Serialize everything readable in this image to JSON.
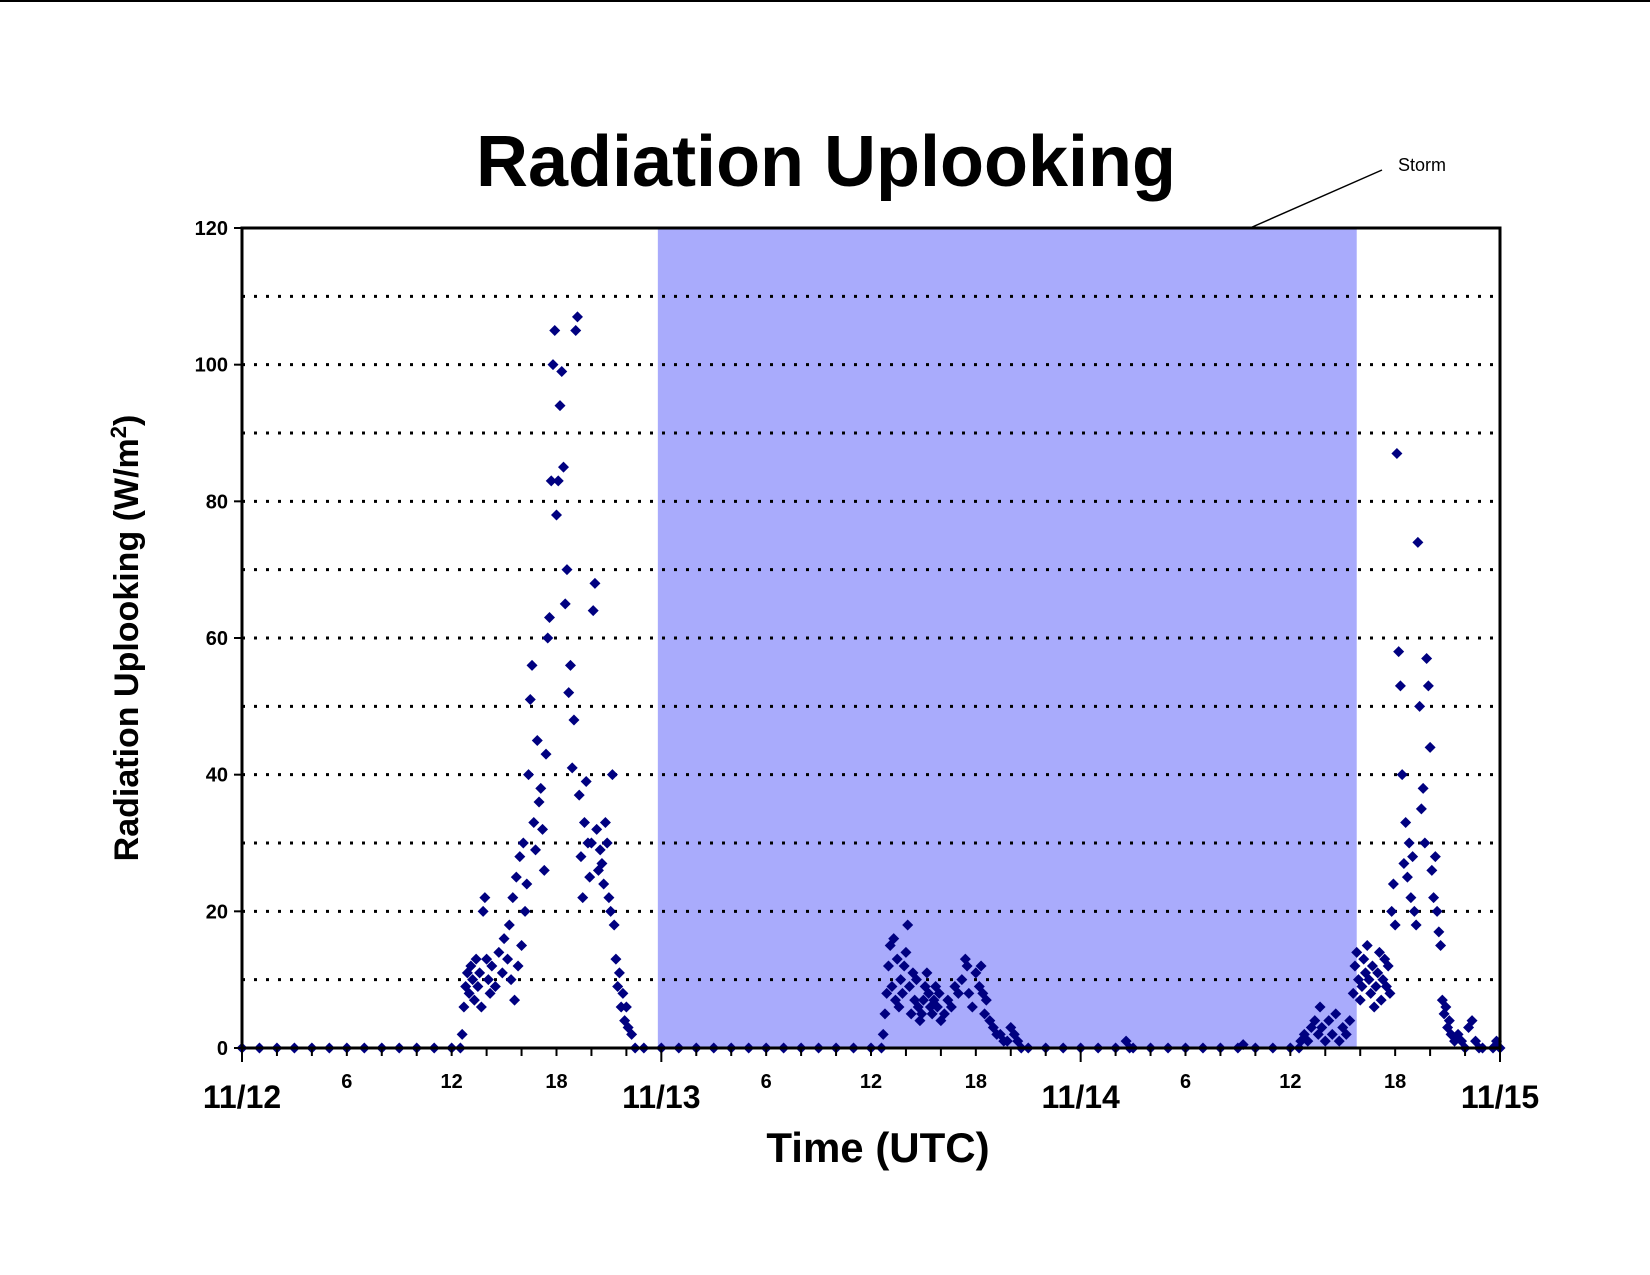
{
  "chart_data": {
    "type": "scatter",
    "title": "Radiation Uplooking",
    "xlabel": "Time (UTC)",
    "ylabel": "Radiation Uplooking (W/m",
    "ylabel_superscript": "2",
    "ylabel_close": ")",
    "ylim": [
      0,
      120
    ],
    "yticks": [
      0,
      20,
      40,
      60,
      80,
      100,
      120
    ],
    "grid_lines": [
      10,
      20,
      30,
      40,
      50,
      60,
      70,
      80,
      90,
      100,
      110
    ],
    "grid": "dotted horizontal",
    "x_unit": "hours from 11/12 00 UTC",
    "xlim": [
      0,
      72
    ],
    "date_ticks": [
      {
        "x": 0,
        "label": "11/12"
      },
      {
        "x": 24,
        "label": "11/13"
      },
      {
        "x": 48,
        "label": "11/14"
      },
      {
        "x": 72,
        "label": "11/15"
      }
    ],
    "hour_ticks": [
      {
        "x": 6,
        "label": "6"
      },
      {
        "x": 12,
        "label": "12"
      },
      {
        "x": 18,
        "label": "18"
      },
      {
        "x": 30,
        "label": "6"
      },
      {
        "x": 36,
        "label": "12"
      },
      {
        "x": 42,
        "label": "18"
      },
      {
        "x": 54,
        "label": "6"
      },
      {
        "x": 60,
        "label": "12"
      },
      {
        "x": 66,
        "label": "18"
      }
    ],
    "shaded_region": {
      "x_start": 23.8,
      "x_end": 63.8,
      "color": "#a9abfc",
      "label": "Storm"
    },
    "marker_color": "#000080",
    "series": [
      {
        "marker": "diamond",
        "points": [
          [
            0,
            0
          ],
          [
            1,
            0
          ],
          [
            2,
            0
          ],
          [
            3,
            0
          ],
          [
            4,
            0
          ],
          [
            5,
            0
          ],
          [
            6,
            0
          ],
          [
            7,
            0
          ],
          [
            8,
            0
          ],
          [
            9,
            0
          ],
          [
            10,
            0
          ],
          [
            11,
            0
          ],
          [
            12,
            0
          ],
          [
            12.5,
            0
          ],
          [
            12.6,
            2
          ],
          [
            12.7,
            6
          ],
          [
            12.8,
            9
          ],
          [
            12.9,
            11
          ],
          [
            13.0,
            8
          ],
          [
            13.1,
            12
          ],
          [
            13.2,
            10
          ],
          [
            13.3,
            7
          ],
          [
            13.4,
            13
          ],
          [
            13.5,
            9
          ],
          [
            13.6,
            11
          ],
          [
            13.7,
            6
          ],
          [
            13.8,
            20
          ],
          [
            13.9,
            22
          ],
          [
            14.0,
            13
          ],
          [
            14.1,
            10
          ],
          [
            14.2,
            8
          ],
          [
            14.3,
            12
          ],
          [
            14.5,
            9
          ],
          [
            14.7,
            14
          ],
          [
            14.9,
            11
          ],
          [
            15.0,
            16
          ],
          [
            15.2,
            13
          ],
          [
            15.3,
            18
          ],
          [
            15.4,
            10
          ],
          [
            15.5,
            22
          ],
          [
            15.6,
            7
          ],
          [
            15.7,
            25
          ],
          [
            15.8,
            12
          ],
          [
            15.9,
            28
          ],
          [
            16.0,
            15
          ],
          [
            16.1,
            30
          ],
          [
            16.2,
            20
          ],
          [
            16.3,
            24
          ],
          [
            16.4,
            40
          ],
          [
            16.5,
            51
          ],
          [
            16.6,
            56
          ],
          [
            16.7,
            33
          ],
          [
            16.8,
            29
          ],
          [
            16.9,
            45
          ],
          [
            17.0,
            36
          ],
          [
            17.1,
            38
          ],
          [
            17.2,
            32
          ],
          [
            17.3,
            26
          ],
          [
            17.4,
            43
          ],
          [
            17.5,
            60
          ],
          [
            17.6,
            63
          ],
          [
            17.7,
            83
          ],
          [
            17.8,
            100
          ],
          [
            17.9,
            105
          ],
          [
            18.0,
            78
          ],
          [
            18.1,
            83
          ],
          [
            18.2,
            94
          ],
          [
            18.3,
            99
          ],
          [
            18.4,
            85
          ],
          [
            18.5,
            65
          ],
          [
            18.6,
            70
          ],
          [
            18.7,
            52
          ],
          [
            18.8,
            56
          ],
          [
            18.9,
            41
          ],
          [
            19.0,
            48
          ],
          [
            19.1,
            105
          ],
          [
            19.2,
            107
          ],
          [
            19.3,
            37
          ],
          [
            19.4,
            28
          ],
          [
            19.5,
            22
          ],
          [
            19.6,
            33
          ],
          [
            19.7,
            39
          ],
          [
            19.8,
            30
          ],
          [
            19.9,
            25
          ],
          [
            20.0,
            30
          ],
          [
            20.1,
            64
          ],
          [
            20.2,
            68
          ],
          [
            20.3,
            32
          ],
          [
            20.4,
            26
          ],
          [
            20.5,
            29
          ],
          [
            20.6,
            27
          ],
          [
            20.7,
            24
          ],
          [
            20.8,
            33
          ],
          [
            20.9,
            30
          ],
          [
            21.0,
            22
          ],
          [
            21.1,
            20
          ],
          [
            21.2,
            40
          ],
          [
            21.3,
            18
          ],
          [
            21.4,
            13
          ],
          [
            21.5,
            9
          ],
          [
            21.6,
            11
          ],
          [
            21.7,
            6
          ],
          [
            21.8,
            8
          ],
          [
            21.9,
            4
          ],
          [
            22.0,
            6
          ],
          [
            22.1,
            3
          ],
          [
            22.3,
            2
          ],
          [
            22.5,
            0
          ],
          [
            23,
            0
          ],
          [
            24,
            0
          ],
          [
            25,
            0
          ],
          [
            26,
            0
          ],
          [
            27,
            0
          ],
          [
            28,
            0
          ],
          [
            29,
            0
          ],
          [
            30,
            0
          ],
          [
            31,
            0
          ],
          [
            32,
            0
          ],
          [
            33,
            0
          ],
          [
            34,
            0
          ],
          [
            35,
            0
          ],
          [
            36,
            0
          ],
          [
            36.6,
            0
          ],
          [
            36.7,
            2
          ],
          [
            36.8,
            5
          ],
          [
            36.9,
            8
          ],
          [
            37.0,
            12
          ],
          [
            37.1,
            15
          ],
          [
            37.2,
            9
          ],
          [
            37.3,
            16
          ],
          [
            37.4,
            7
          ],
          [
            37.5,
            13
          ],
          [
            37.6,
            6
          ],
          [
            37.7,
            10
          ],
          [
            37.8,
            8
          ],
          [
            37.9,
            12
          ],
          [
            38.0,
            14
          ],
          [
            38.1,
            18
          ],
          [
            38.2,
            9
          ],
          [
            38.3,
            5
          ],
          [
            38.4,
            11
          ],
          [
            38.5,
            7
          ],
          [
            38.6,
            10
          ],
          [
            38.7,
            6
          ],
          [
            38.8,
            4
          ],
          [
            38.9,
            5
          ],
          [
            39.0,
            7
          ],
          [
            39.1,
            9
          ],
          [
            39.2,
            11
          ],
          [
            39.3,
            8
          ],
          [
            39.4,
            6
          ],
          [
            39.5,
            5
          ],
          [
            39.6,
            7
          ],
          [
            39.7,
            9
          ],
          [
            39.8,
            6
          ],
          [
            39.9,
            8
          ],
          [
            40.0,
            4
          ],
          [
            40.2,
            5
          ],
          [
            40.4,
            7
          ],
          [
            40.6,
            6
          ],
          [
            40.8,
            9
          ],
          [
            41.0,
            8
          ],
          [
            41.2,
            10
          ],
          [
            41.4,
            13
          ],
          [
            41.5,
            12
          ],
          [
            41.6,
            8
          ],
          [
            41.8,
            6
          ],
          [
            42.0,
            11
          ],
          [
            42.2,
            9
          ],
          [
            42.3,
            12
          ],
          [
            42.4,
            8
          ],
          [
            42.5,
            5
          ],
          [
            42.6,
            7
          ],
          [
            42.8,
            4
          ],
          [
            43.0,
            3
          ],
          [
            43.2,
            2
          ],
          [
            43.4,
            2
          ],
          [
            43.6,
            1
          ],
          [
            43.8,
            1
          ],
          [
            44.0,
            3
          ],
          [
            44.2,
            2
          ],
          [
            44.4,
            1
          ],
          [
            44.6,
            0
          ],
          [
            45,
            0
          ],
          [
            46,
            0
          ],
          [
            47,
            0
          ],
          [
            48,
            0
          ],
          [
            49,
            0
          ],
          [
            50,
            0
          ],
          [
            50.6,
            1
          ],
          [
            50.8,
            0
          ],
          [
            51,
            0
          ],
          [
            52,
            0
          ],
          [
            53,
            0
          ],
          [
            54,
            0
          ],
          [
            55,
            0
          ],
          [
            56,
            0
          ],
          [
            57,
            0
          ],
          [
            57.3,
            0.5
          ],
          [
            58,
            0
          ],
          [
            59,
            0
          ],
          [
            60,
            0
          ],
          [
            60.5,
            0
          ],
          [
            60.6,
            1
          ],
          [
            60.8,
            2
          ],
          [
            61.0,
            1
          ],
          [
            61.2,
            3
          ],
          [
            61.4,
            4
          ],
          [
            61.6,
            2
          ],
          [
            61.7,
            6
          ],
          [
            61.8,
            3
          ],
          [
            62.0,
            1
          ],
          [
            62.2,
            4
          ],
          [
            62.4,
            2
          ],
          [
            62.6,
            5
          ],
          [
            62.8,
            1
          ],
          [
            63.0,
            3
          ],
          [
            63.2,
            2
          ],
          [
            63.4,
            4
          ],
          [
            63.6,
            8
          ],
          [
            63.7,
            12
          ],
          [
            63.8,
            14
          ],
          [
            63.9,
            10
          ],
          [
            64.0,
            7
          ],
          [
            64.1,
            9
          ],
          [
            64.2,
            13
          ],
          [
            64.3,
            11
          ],
          [
            64.4,
            15
          ],
          [
            64.5,
            10
          ],
          [
            64.6,
            8
          ],
          [
            64.7,
            12
          ],
          [
            64.8,
            6
          ],
          [
            64.9,
            9
          ],
          [
            65.0,
            11
          ],
          [
            65.1,
            14
          ],
          [
            65.2,
            7
          ],
          [
            65.3,
            10
          ],
          [
            65.4,
            13
          ],
          [
            65.5,
            9
          ],
          [
            65.6,
            12
          ],
          [
            65.7,
            8
          ],
          [
            65.8,
            20
          ],
          [
            65.9,
            24
          ],
          [
            66.0,
            18
          ],
          [
            66.1,
            87
          ],
          [
            66.2,
            58
          ],
          [
            66.3,
            53
          ],
          [
            66.4,
            40
          ],
          [
            66.5,
            27
          ],
          [
            66.6,
            33
          ],
          [
            66.7,
            25
          ],
          [
            66.8,
            30
          ],
          [
            66.9,
            22
          ],
          [
            67.0,
            28
          ],
          [
            67.1,
            20
          ],
          [
            67.2,
            18
          ],
          [
            67.3,
            74
          ],
          [
            67.4,
            50
          ],
          [
            67.5,
            35
          ],
          [
            67.6,
            38
          ],
          [
            67.7,
            30
          ],
          [
            67.8,
            57
          ],
          [
            67.9,
            53
          ],
          [
            68.0,
            44
          ],
          [
            68.1,
            26
          ],
          [
            68.2,
            22
          ],
          [
            68.3,
            28
          ],
          [
            68.4,
            20
          ],
          [
            68.5,
            17
          ],
          [
            68.6,
            15
          ],
          [
            68.7,
            7
          ],
          [
            68.8,
            5
          ],
          [
            68.9,
            6
          ],
          [
            69.0,
            3
          ],
          [
            69.1,
            4
          ],
          [
            69.2,
            2
          ],
          [
            69.4,
            1
          ],
          [
            69.6,
            2
          ],
          [
            69.8,
            1
          ],
          [
            70.0,
            0
          ],
          [
            70.2,
            3
          ],
          [
            70.4,
            4
          ],
          [
            70.6,
            1
          ],
          [
            70.8,
            0
          ],
          [
            71,
            0
          ],
          [
            71.6,
            0
          ],
          [
            71.8,
            1
          ],
          [
            72,
            0
          ]
        ]
      }
    ]
  }
}
